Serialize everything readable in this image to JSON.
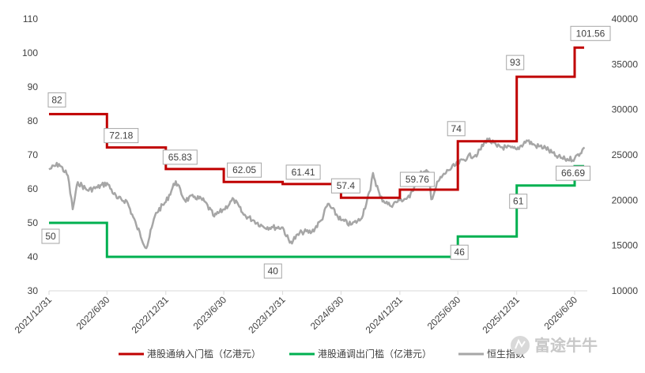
{
  "chart_data": {
    "type": "line",
    "title": "",
    "xlabel": "",
    "ylabel": "",
    "x_ticks": [
      "2021/12/31",
      "2022/6/30",
      "2022/12/31",
      "2023/6/30",
      "2023/12/31",
      "2024/6/30",
      "2024/12/31",
      "2025/6/30",
      "2025/12/31",
      "2026/6/30"
    ],
    "y_left": {
      "range": [
        30,
        110
      ],
      "ticks": [
        "30",
        "40",
        "50",
        "60",
        "70",
        "80",
        "90",
        "100",
        "110"
      ]
    },
    "y_right": {
      "range": [
        10000,
        40000
      ],
      "ticks": [
        "10000",
        "15000",
        "20000",
        "25000",
        "30000",
        "35000",
        "40000"
      ]
    },
    "grid": false,
    "legend_position": "bottom",
    "series": [
      {
        "name": "港股通纳入门槛（亿港元）",
        "axis": "left",
        "color": "#c00000",
        "step": true,
        "x": [
          "2021/12/31",
          "2022/6/30",
          "2022/12/31",
          "2023/6/30",
          "2023/12/31",
          "2024/6/30",
          "2024/12/31",
          "2025/6/30",
          "2025/12/31",
          "2026/6/30"
        ],
        "values": [
          82,
          72.18,
          65.83,
          62.05,
          61.41,
          57.4,
          59.76,
          74,
          93,
          101.56
        ]
      },
      {
        "name": "港股通调出门槛（亿港元）",
        "axis": "left",
        "color": "#00b050",
        "step": true,
        "x": [
          "2021/12/31",
          "2022/6/30",
          "2022/12/31",
          "2023/6/30",
          "2023/12/31",
          "2024/6/30",
          "2024/12/31",
          "2025/6/30",
          "2025/12/31",
          "2026/6/30"
        ],
        "values": [
          50,
          40,
          40,
          40,
          40,
          40,
          40,
          46,
          61,
          66.69
        ]
      },
      {
        "name": "恒生指数",
        "axis": "right",
        "color": "#a6a6a6",
        "x": [
          "2021/12/31",
          "2022/1/31",
          "2022/2/28",
          "2022/3/15",
          "2022/3/31",
          "2022/4/30",
          "2022/5/31",
          "2022/6/30",
          "2022/7/31",
          "2022/8/31",
          "2022/9/30",
          "2022/10/31",
          "2022/11/30",
          "2022/12/31",
          "2023/1/31",
          "2023/2/28",
          "2023/3/31",
          "2023/4/30",
          "2023/5/31",
          "2023/6/30",
          "2023/7/31",
          "2023/8/31",
          "2023/9/30",
          "2023/10/31",
          "2023/11/30",
          "2023/12/31",
          "2024/1/22",
          "2024/2/29",
          "2024/3/31",
          "2024/4/30",
          "2024/5/20",
          "2024/6/30",
          "2024/7/31",
          "2024/8/31",
          "2024/9/30",
          "2024/10/8",
          "2024/10/31",
          "2024/11/30",
          "2024/12/31",
          "2025/1/31",
          "2025/2/28",
          "2025/3/31",
          "2025/4/8",
          "2025/4/30",
          "2025/5/31",
          "2025/6/30",
          "2025/7/31",
          "2025/8/31",
          "2025/9/30",
          "2025/10/31",
          "2025/11/30",
          "2025/12/31",
          "2026/1/31",
          "2026/2/28",
          "2026/3/31",
          "2026/4/30",
          "2026/5/31",
          "2026/6/30",
          "2026/7/31"
        ],
        "values": [
          23400,
          24000,
          22700,
          19000,
          22000,
          21100,
          21400,
          21900,
          20200,
          19900,
          17200,
          14700,
          18600,
          19800,
          22100,
          20000,
          20400,
          19900,
          18200,
          19000,
          20100,
          18400,
          17800,
          17100,
          17000,
          17000,
          15300,
          16500,
          16500,
          17800,
          19600,
          17800,
          17300,
          17900,
          21100,
          23000,
          20300,
          19400,
          20000,
          20300,
          22900,
          23100,
          20100,
          22100,
          23300,
          24000,
          24800,
          25100,
          26800,
          25900,
          25800,
          25600,
          26600,
          26000,
          25800,
          24900,
          24500,
          24600,
          25800
        ]
      }
    ],
    "data_labels": [
      {
        "series": 0,
        "text": "82"
      },
      {
        "series": 0,
        "text": "72.18"
      },
      {
        "series": 0,
        "text": "65.83"
      },
      {
        "series": 0,
        "text": "62.05"
      },
      {
        "series": 0,
        "text": "61.41"
      },
      {
        "series": 0,
        "text": "57.4"
      },
      {
        "series": 0,
        "text": "59.76"
      },
      {
        "series": 0,
        "text": "74"
      },
      {
        "series": 0,
        "text": "93"
      },
      {
        "series": 0,
        "text": "101.56"
      },
      {
        "series": 1,
        "text": "50"
      },
      {
        "series": 1,
        "text": "40"
      },
      {
        "series": 1,
        "text": "46"
      },
      {
        "series": 1,
        "text": "61"
      },
      {
        "series": 1,
        "text": "66.69"
      }
    ]
  },
  "watermark": {
    "text": "富途牛牛",
    "icon": "futu-logo-icon"
  }
}
